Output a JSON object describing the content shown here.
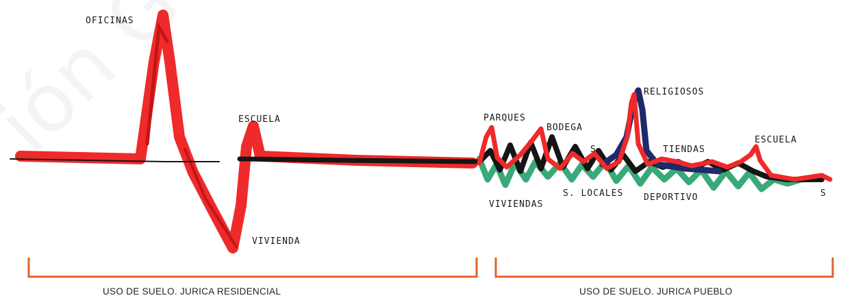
{
  "watermark": "ión General de",
  "colors": {
    "red": "#ee2a2a",
    "dark_red": "#c21515",
    "black": "#151515",
    "navy": "#1e2a6a",
    "green": "#23a06a",
    "bracket": "#e0632a",
    "ink": "#1a1a1a"
  },
  "labels": {
    "oficinas": "OFICINAS",
    "escuela_left": "ESCUELA",
    "vivienda": "VIVIENDA",
    "parques": "PARQUES",
    "bodega": "BODEGA",
    "religiosos": "RELIGIOSOS",
    "tiendas": "TIENDAS",
    "escuela_right": "ESCUELA",
    "s_mark_1": "S",
    "s_mark_2": "S",
    "s_locales": "S. LOCALES",
    "viviendas": "VIVIENDAS",
    "deportivo": "DEPORTIVO"
  },
  "sections": {
    "left_caption": "USO DE SUELO. JURICA RESIDENCIAL",
    "right_caption": "USO DE SUELO. JURICA PUEBLO"
  }
}
